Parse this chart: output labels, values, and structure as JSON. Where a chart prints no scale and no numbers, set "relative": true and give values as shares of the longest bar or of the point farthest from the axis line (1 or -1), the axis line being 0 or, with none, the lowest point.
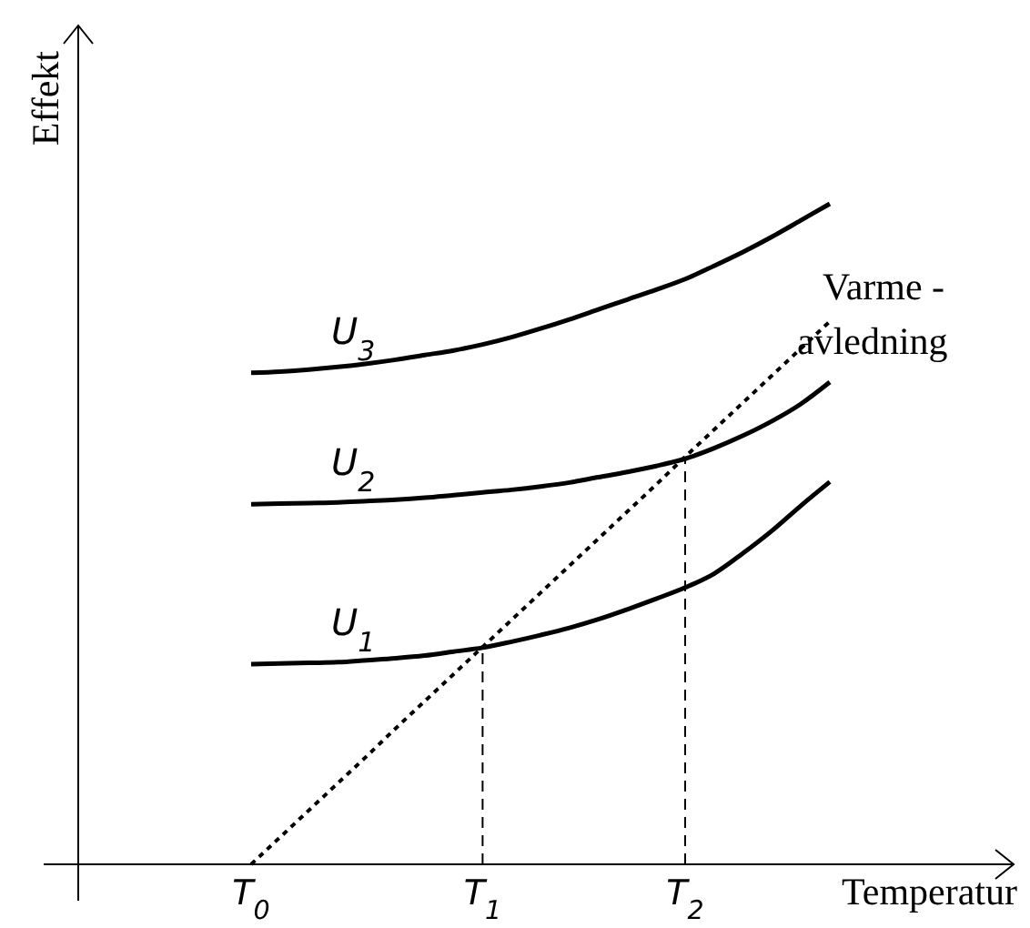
{
  "chart_data": {
    "type": "line",
    "relative": true,
    "xlabel": "Temperatur",
    "ylabel": "Effekt",
    "categories": [
      "T$_{0}$",
      null,
      null,
      null,
      null,
      null,
      null,
      null,
      "T$_{1}$",
      null,
      null,
      null,
      null,
      null,
      null,
      "T$_{2}$",
      null,
      null,
      null,
      null,
      null
    ],
    "series": [
      {
        "name": "U$_{1}$",
        "color": "#000000",
        "line_style": "solid",
        "values": [
          0.303,
          0.304,
          0.305,
          0.306,
          0.309,
          0.312,
          0.316,
          0.322,
          0.328,
          0.337,
          0.347,
          0.358,
          0.371,
          0.386,
          0.402,
          0.419,
          0.44,
          0.471,
          0.505,
          0.543,
          0.579
        ]
      },
      {
        "name": "U$_{2}$",
        "color": "#000000",
        "line_style": "solid",
        "values": [
          0.545,
          0.546,
          0.547,
          0.548,
          0.55,
          0.552,
          0.555,
          0.559,
          0.563,
          0.567,
          0.572,
          0.578,
          0.586,
          0.594,
          0.603,
          0.614,
          0.63,
          0.649,
          0.671,
          0.697,
          0.73
        ]
      },
      {
        "name": "U$_{3}$",
        "color": "#000000",
        "line_style": "solid",
        "values": [
          0.744,
          0.746,
          0.749,
          0.753,
          0.758,
          0.764,
          0.771,
          0.778,
          0.787,
          0.798,
          0.811,
          0.825,
          0.84,
          0.855,
          0.87,
          0.886,
          0.906,
          0.927,
          0.95,
          0.975,
          1
        ]
      },
      {
        "name": "Varme -\navledning",
        "color": "#000000",
        "line_style": "dotted",
        "values": [
          0,
          0.041,
          0.082,
          0.123,
          0.164,
          0.206,
          0.247,
          0.288,
          0.329,
          0.37,
          0.411,
          0.452,
          0.493,
          0.534,
          0.575,
          0.617,
          0.658,
          0.699,
          0.74,
          0.781,
          0.822
        ]
      }
    ],
    "ref_lines": [
      {
        "axis": "x",
        "value": "T$_{1}$",
        "line_style": "dashed"
      },
      {
        "axis": "x",
        "value": "T$_{2}$",
        "line_style": "dashed"
      }
    ]
  }
}
